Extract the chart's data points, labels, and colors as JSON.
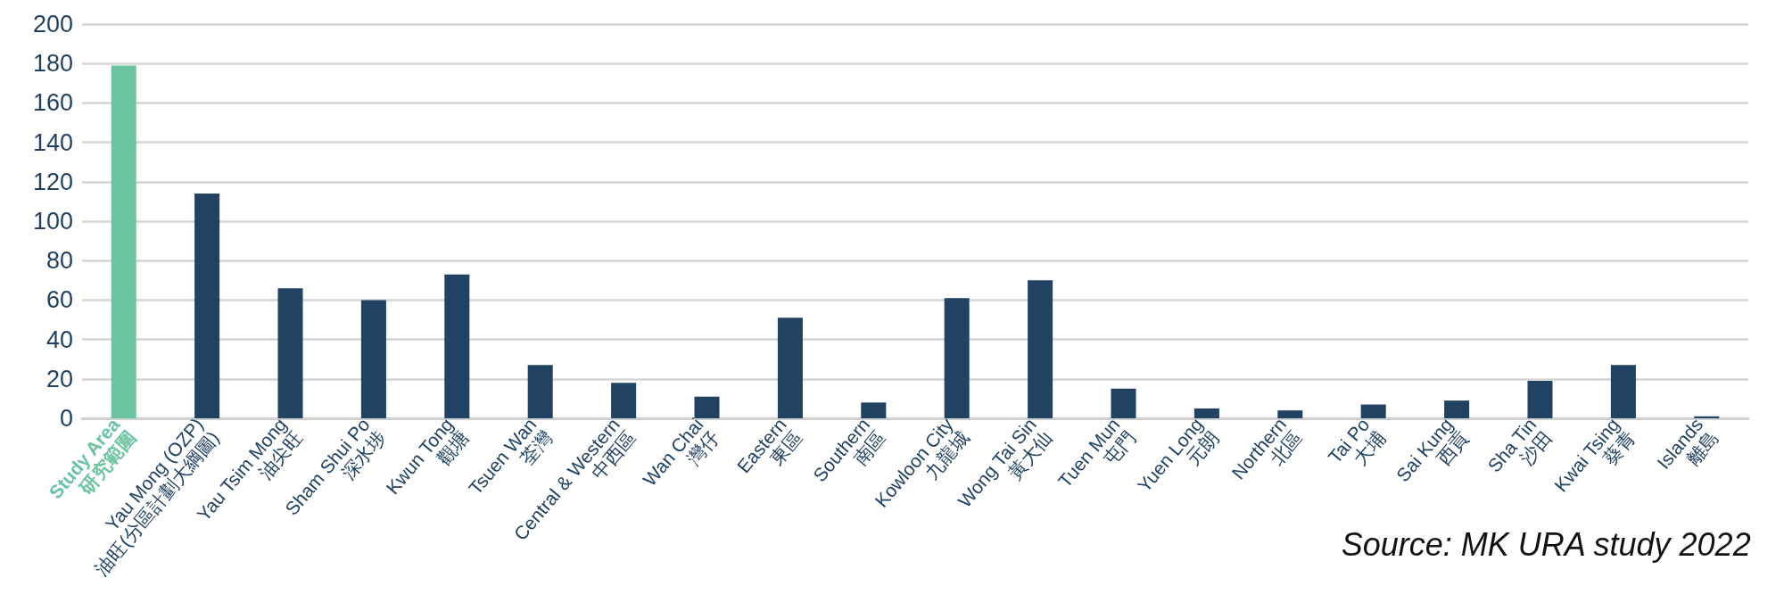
{
  "chart_data": {
    "type": "bar",
    "categories": [
      "Study Area\n研究範圍",
      "Yau Mong (OZP)\n油旺(分區計劃大綱圖)",
      "Yau Tsim Mong\n油尖旺",
      "Sham Shui Po\n深水埗",
      "Kwun Tong\n觀塘",
      "Tsuen Wan\n荃灣",
      "Central & Western\n中西區",
      "Wan Chai\n灣仔",
      "Eastern\n東區",
      "Southern\n南區",
      "Kowloon City\n九龍城",
      "Wong Tai Sin\n黃大仙",
      "Tuen Mun\n屯門",
      "Yuen Long\n元朗",
      "Northern\n北區",
      "Tai Po\n大埔",
      "Sai Kung\n西貢",
      "Sha Tin\n沙田",
      "Kwai Tsing\n葵青",
      "Islands\n離島"
    ],
    "values": [
      179,
      114,
      66,
      60,
      73,
      27,
      18,
      11,
      51,
      8,
      61,
      70,
      15,
      5,
      4,
      7,
      9,
      19,
      27,
      1
    ],
    "colors": [
      "#6cc3a0",
      "#214263",
      "#214263",
      "#214263",
      "#214263",
      "#214263",
      "#214263",
      "#214263",
      "#214263",
      "#214263",
      "#214263",
      "#214263",
      "#214263",
      "#214263",
      "#214263",
      "#214263",
      "#214263",
      "#214263",
      "#214263",
      "#214263"
    ],
    "ylim": [
      0,
      200
    ],
    "yticks": [
      0,
      20,
      40,
      60,
      80,
      100,
      120,
      140,
      160,
      180,
      200
    ],
    "grid": true,
    "annotations": [
      "Source: MK URA study 2022"
    ]
  }
}
